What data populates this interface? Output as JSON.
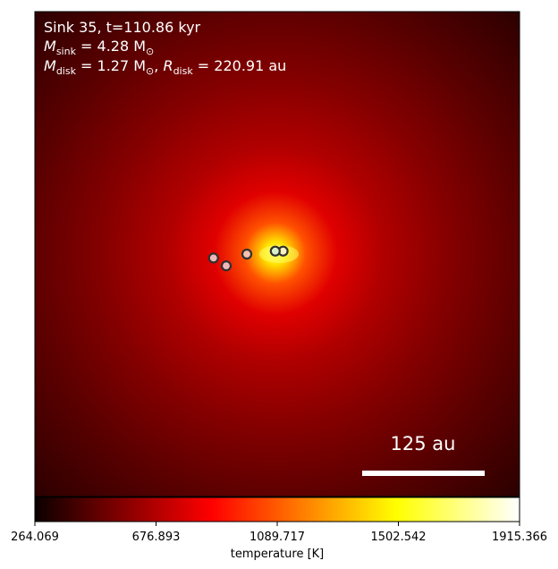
{
  "chart_data": {
    "type": "heatmap",
    "title": "",
    "annotations": {
      "line1": "Sink 35, t=110.86 kyr",
      "line2_sym": "M",
      "line2_sub": "sink",
      "line2_rest": " = 4.28 M",
      "line2_sun": "⊙",
      "line3_sym": "M",
      "line3_sub": "disk",
      "line3_rest": " = 1.27 M",
      "line3_sun": "⊙",
      "line3_sep": ", ",
      "line3_sym2": "R",
      "line3_sub2": "disk",
      "line3_rest2": " = 220.91 au"
    },
    "scale_bar": {
      "label": "125 au",
      "length_au": 125
    },
    "colormap": "hot",
    "colorbar": {
      "label": "temperature [K]",
      "min": 264.069,
      "max": 1915.366,
      "ticks": [
        "264.069",
        "676.893",
        "1089.717",
        "1502.542",
        "1915.366"
      ]
    },
    "field_summary": {
      "peak_temperature": 1915.366,
      "background_temperature": 264.069
    },
    "sinks": [
      {
        "id": "sink-1",
        "x_au": 6,
        "y_au": 3,
        "fill": "#fff0c0"
      },
      {
        "id": "sink-2",
        "x_au": -2,
        "y_au": 3,
        "fill": "#d8f0c8"
      },
      {
        "id": "sink-3",
        "x_au": -31,
        "y_au": 0,
        "fill": "#f8c0b0"
      },
      {
        "id": "sink-4",
        "x_au": -65,
        "y_au": -4,
        "fill": "#f0b8b8"
      },
      {
        "id": "sink-5",
        "x_au": -52,
        "y_au": -12,
        "fill": "#f0b8b8"
      }
    ],
    "grid": false
  }
}
